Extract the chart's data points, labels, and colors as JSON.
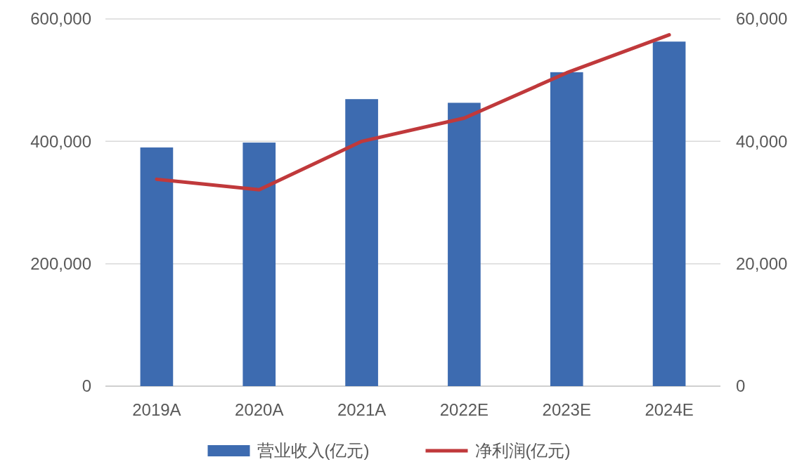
{
  "chart_data": {
    "type": "bar",
    "categories": [
      "2019A",
      "2020A",
      "2021A",
      "2022E",
      "2023E",
      "2024E"
    ],
    "series": [
      {
        "name": "营业收入(亿元)",
        "color": "#3d6bb0",
        "values": [
          390000,
          398000,
          469000,
          463000,
          513000,
          563000
        ]
      },
      {
        "name": "净利润(亿元)",
        "color": "#c0393b",
        "type": "line",
        "axis": "y2",
        "values": [
          33800,
          32100,
          40000,
          43800,
          51200,
          57400
        ]
      }
    ],
    "ylim": [
      0,
      600000
    ],
    "yticks": [
      {
        "value": 0,
        "label": "0"
      },
      {
        "value": 200000,
        "label": "200,000"
      },
      {
        "value": 400000,
        "label": "400,000"
      },
      {
        "value": 600000,
        "label": "600,000"
      }
    ],
    "y2lim": [
      0,
      60000
    ],
    "y2ticks": [
      {
        "value": 0,
        "label": "0"
      },
      {
        "value": 20000,
        "label": "20,000"
      },
      {
        "value": 40000,
        "label": "40,000"
      },
      {
        "value": 60000,
        "label": "60,000"
      }
    ],
    "grid": "y",
    "legend": "bottom",
    "marker": "none",
    "line_style": "solid"
  }
}
